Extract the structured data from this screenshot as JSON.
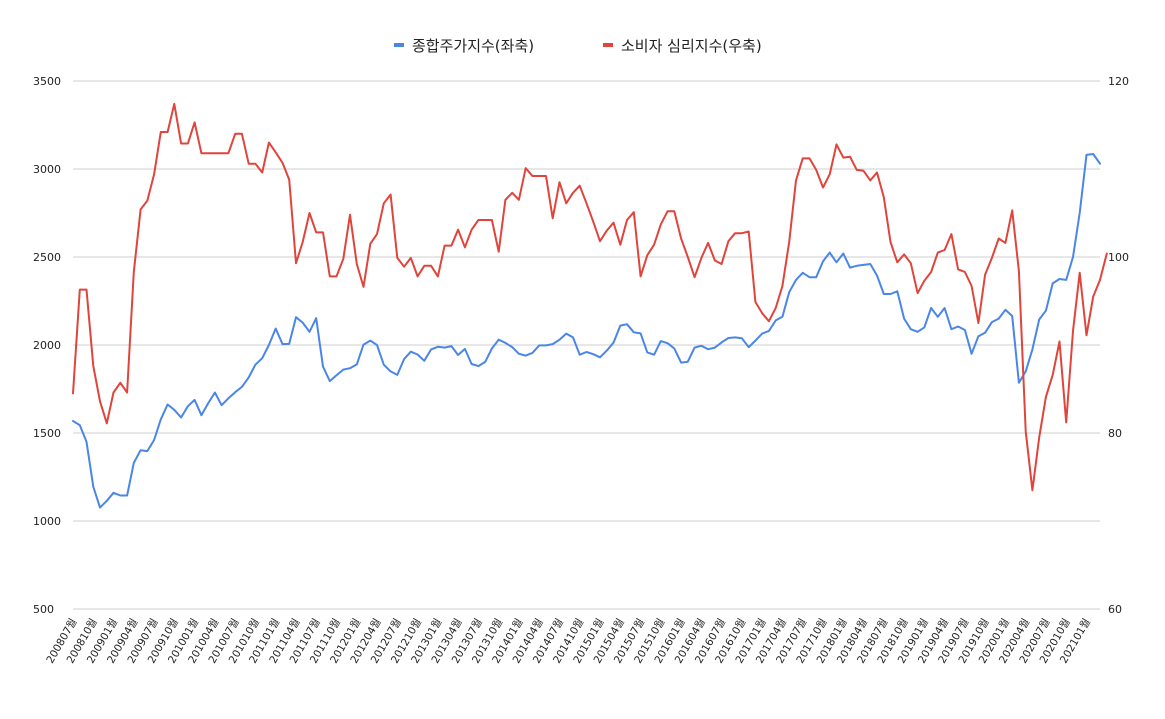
{
  "colors": {
    "series1": "#4a86e8",
    "series2": "#e0443a",
    "grid": "#cfcfcf"
  },
  "chart_data": {
    "type": "line",
    "legend_position": "top-center",
    "grid": true,
    "left_axis": {
      "ylim": [
        500,
        3500
      ],
      "ticks": [
        500,
        1000,
        1500,
        2000,
        2500,
        3000,
        3500
      ]
    },
    "right_axis": {
      "ylim": [
        60,
        120
      ],
      "ticks": [
        60,
        80,
        100,
        120
      ]
    },
    "x_tick_labels": [
      "200807월",
      "200810월",
      "200901월",
      "200904월",
      "200907월",
      "200910월",
      "201001월",
      "201004월",
      "201007월",
      "201010월",
      "201101월",
      "201104월",
      "201107월",
      "201110월",
      "201201월",
      "201204월",
      "201207월",
      "201210월",
      "201301월",
      "201304월",
      "201307월",
      "201310월",
      "201401월",
      "201404월",
      "201407월",
      "201410월",
      "201501월",
      "201504월",
      "201507월",
      "201510월",
      "201601월",
      "201604월",
      "201607월",
      "201610월",
      "201701월",
      "201704월",
      "201707월",
      "201710월",
      "201801월",
      "201804월",
      "201807월",
      "201810월",
      "201901월",
      "201904월",
      "201907월",
      "201910월",
      "202001월",
      "202004월",
      "202007월",
      "202010월",
      "202101월"
    ],
    "months_per_label": 3,
    "series": [
      {
        "name": "종합주가지수(좌축)",
        "axis": "left",
        "color": "#4a86e8",
        "values": [
          1568,
          1545,
          1450,
          1195,
          1076,
          1115,
          1160,
          1145,
          1145,
          1330,
          1402,
          1397,
          1460,
          1578,
          1662,
          1632,
          1588,
          1652,
          1688,
          1601,
          1668,
          1730,
          1658,
          1697,
          1732,
          1762,
          1816,
          1888,
          1925,
          2000,
          2094,
          2005,
          2006,
          2158,
          2127,
          2075,
          2152,
          1877,
          1795,
          1828,
          1860,
          1868,
          1890,
          2002,
          2025,
          2000,
          1888,
          1850,
          1830,
          1920,
          1962,
          1946,
          1910,
          1975,
          1990,
          1985,
          1994,
          1943,
          1978,
          1892,
          1880,
          1904,
          1980,
          2030,
          2012,
          1988,
          1950,
          1940,
          1955,
          1998,
          1998,
          2005,
          2030,
          2065,
          2043,
          1945,
          1960,
          1948,
          1930,
          1968,
          2013,
          2110,
          2118,
          2072,
          2066,
          1958,
          1945,
          2022,
          2010,
          1980,
          1900,
          1905,
          1985,
          1996,
          1976,
          1985,
          2015,
          2040,
          2043,
          2038,
          1988,
          2025,
          2065,
          2080,
          2140,
          2160,
          2300,
          2370,
          2410,
          2385,
          2385,
          2475,
          2525,
          2470,
          2520,
          2440,
          2450,
          2455,
          2460,
          2395,
          2290,
          2290,
          2305,
          2150,
          2090,
          2075,
          2100,
          2210,
          2160,
          2210,
          2090,
          2105,
          2085,
          1950,
          2050,
          2070,
          2130,
          2150,
          2200,
          2165,
          1785,
          1850,
          1975,
          2145,
          2195,
          2350,
          2375,
          2370,
          2500,
          2750,
          3080,
          3085,
          3030
        ]
      },
      {
        "name": "소비자 심리지수(우축)",
        "axis": "right",
        "color": "#e0443a",
        "values": [
          84.5,
          96.3,
          96.3,
          87.6,
          83.6,
          81.1,
          84.6,
          85.7,
          84.6,
          98.3,
          105.4,
          106.4,
          109.4,
          114.2,
          114.2,
          117.4,
          112.9,
          112.9,
          115.3,
          111.8,
          111.8,
          111.8,
          111.8,
          111.8,
          114.0,
          114.0,
          110.6,
          110.6,
          109.6,
          113.0,
          111.9,
          110.7,
          108.8,
          99.3,
          101.7,
          105.0,
          102.8,
          102.8,
          97.8,
          97.8,
          99.8,
          104.8,
          99.2,
          96.6,
          101.5,
          102.6,
          106.1,
          107.1,
          99.9,
          98.9,
          99.9,
          97.8,
          99.0,
          99.0,
          97.8,
          101.3,
          101.3,
          103.1,
          101.1,
          103.1,
          104.2,
          104.2,
          104.2,
          100.6,
          106.5,
          107.3,
          106.5,
          110.1,
          109.2,
          109.2,
          109.2,
          104.4,
          108.5,
          106.1,
          107.3,
          108.1,
          106.1,
          104.0,
          101.8,
          103.0,
          103.9,
          101.4,
          104.2,
          105.1,
          97.8,
          100.2,
          101.4,
          103.7,
          105.2,
          105.2,
          102.1,
          100.0,
          97.7,
          99.9,
          101.6,
          99.6,
          99.2,
          101.8,
          102.7,
          102.7,
          102.9,
          94.9,
          93.6,
          92.7,
          94.2,
          96.7,
          101.7,
          108.7,
          111.2,
          111.2,
          109.9,
          107.9,
          109.4,
          112.8,
          111.3,
          111.4,
          109.9,
          109.8,
          108.7,
          109.6,
          106.8,
          101.7,
          99.4,
          100.3,
          99.3,
          95.9,
          97.3,
          98.3,
          100.5,
          100.8,
          102.6,
          98.6,
          98.3,
          96.7,
          92.5,
          98.0,
          99.9,
          102.1,
          101.6,
          105.3,
          98.4,
          80.2,
          73.5,
          79.5,
          84.1,
          86.6,
          90.4,
          81.2,
          91.6,
          98.2,
          91.1,
          95.5,
          97.4,
          100.4
        ]
      }
    ]
  }
}
